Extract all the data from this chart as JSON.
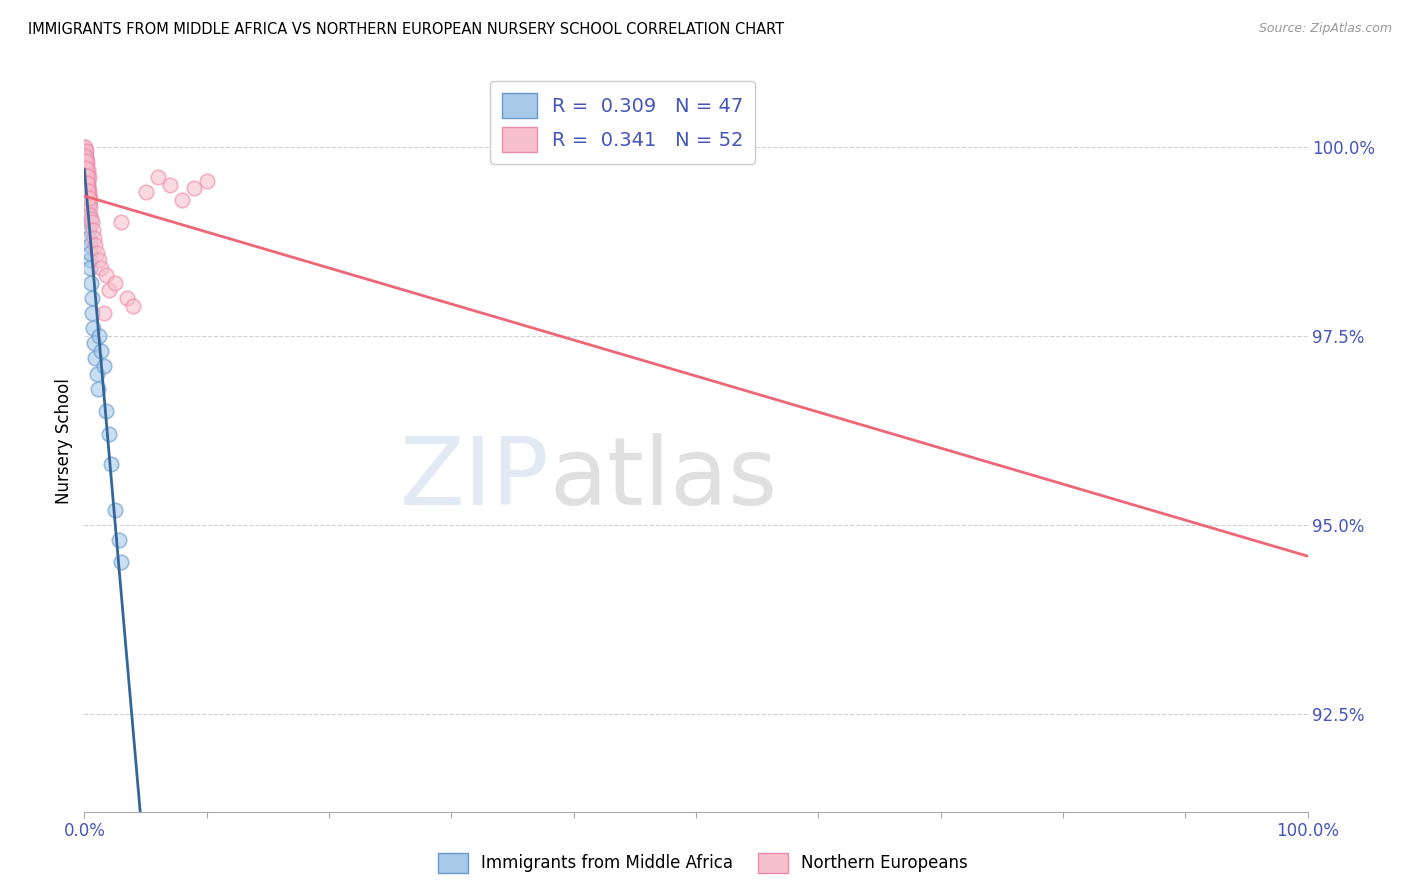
{
  "title": "IMMIGRANTS FROM MIDDLE AFRICA VS NORTHERN EUROPEAN NURSERY SCHOOL CORRELATION CHART",
  "source": "Source: ZipAtlas.com",
  "ylabel": "Nursery School",
  "legend1_r": "0.309",
  "legend1_n": "47",
  "legend2_r": "0.341",
  "legend2_n": "52",
  "blue_color_face": "#A8C8E8",
  "blue_color_edge": "#6699CC",
  "pink_color_face": "#F8C0CC",
  "pink_color_edge": "#EE88AA",
  "blue_line_color": "#336699",
  "pink_line_color": "#EE6677",
  "watermark_color": "#D0DFF0",
  "xlim": [
    0,
    100
  ],
  "ylim": [
    91.2,
    101.0
  ],
  "yticks": [
    92.5,
    95.0,
    97.5,
    100.0
  ],
  "ytick_labels": [
    "92.5%",
    "95.0%",
    "97.5%",
    "100.0%"
  ],
  "blue_x": [
    0.02,
    0.04,
    0.06,
    0.08,
    0.1,
    0.12,
    0.14,
    0.16,
    0.18,
    0.2,
    0.22,
    0.24,
    0.26,
    0.28,
    0.3,
    0.32,
    0.34,
    0.36,
    0.38,
    0.4,
    0.42,
    0.44,
    0.46,
    0.48,
    0.5,
    0.55,
    0.6,
    0.65,
    0.7,
    0.8,
    0.9,
    1.0,
    1.1,
    1.2,
    1.4,
    1.6,
    1.8,
    2.0,
    2.2,
    2.5,
    2.8,
    3.0,
    0.05,
    0.09,
    0.15,
    0.25,
    0.35
  ],
  "blue_y": [
    99.85,
    99.9,
    99.8,
    99.95,
    99.7,
    99.75,
    99.85,
    99.8,
    99.6,
    99.65,
    99.5,
    99.55,
    99.4,
    99.45,
    99.3,
    99.2,
    99.35,
    99.1,
    99.0,
    98.9,
    98.8,
    98.7,
    98.5,
    98.6,
    98.4,
    98.2,
    98.0,
    97.8,
    97.6,
    97.4,
    97.2,
    97.0,
    96.8,
    97.5,
    97.3,
    97.1,
    96.5,
    96.2,
    95.8,
    95.2,
    94.8,
    94.5,
    99.75,
    99.55,
    99.65,
    99.45,
    99.25
  ],
  "pink_x": [
    0.01,
    0.03,
    0.05,
    0.07,
    0.09,
    0.11,
    0.13,
    0.15,
    0.17,
    0.19,
    0.21,
    0.23,
    0.25,
    0.27,
    0.29,
    0.31,
    0.33,
    0.35,
    0.37,
    0.39,
    0.41,
    0.43,
    0.45,
    0.5,
    0.55,
    0.6,
    0.7,
    0.8,
    0.9,
    1.0,
    1.2,
    1.4,
    1.6,
    1.8,
    2.0,
    2.5,
    3.0,
    3.5,
    4.0,
    5.0,
    6.0,
    7.0,
    8.0,
    9.0,
    10.0,
    0.06,
    0.1,
    0.14,
    0.18,
    0.22,
    0.3,
    0.4
  ],
  "pink_y": [
    100.0,
    99.95,
    100.0,
    99.9,
    99.85,
    99.95,
    99.8,
    99.85,
    99.75,
    99.7,
    99.8,
    99.65,
    99.6,
    99.55,
    99.7,
    99.5,
    99.45,
    99.6,
    99.4,
    99.35,
    99.25,
    99.3,
    99.2,
    99.1,
    99.05,
    99.0,
    98.9,
    98.8,
    98.7,
    98.6,
    98.5,
    98.4,
    97.8,
    98.3,
    98.1,
    98.2,
    99.0,
    98.0,
    97.9,
    99.4,
    99.6,
    99.5,
    99.3,
    99.45,
    99.55,
    99.88,
    99.82,
    99.72,
    99.62,
    99.52,
    99.42,
    99.32
  ]
}
